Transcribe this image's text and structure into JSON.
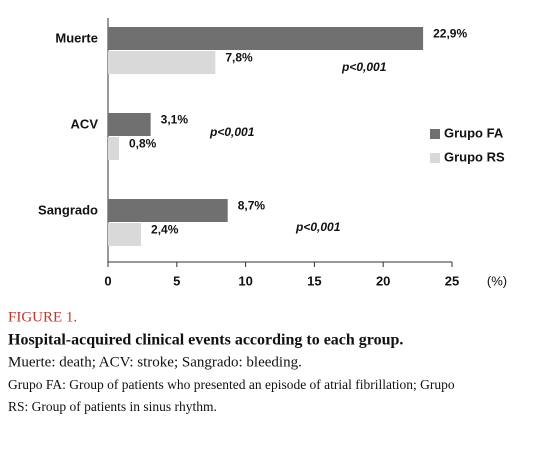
{
  "chart_data": {
    "type": "hbar",
    "categories": [
      "Muerte",
      "ACV",
      "Sangrado"
    ],
    "series": [
      {
        "name": "Grupo FA",
        "color": "#707070",
        "values": [
          22.9,
          3.1,
          8.7
        ],
        "value_labels": [
          "22,9%",
          "3,1%",
          "8,7%"
        ]
      },
      {
        "name": "Grupo RS",
        "color": "#d9d9d9",
        "values": [
          7.8,
          0.8,
          2.4
        ],
        "value_labels": [
          "7,8%",
          "0,8%",
          "2,4%"
        ]
      }
    ],
    "xlim": [
      0,
      25
    ],
    "xticks": [
      0,
      5,
      10,
      15,
      20,
      25
    ],
    "x_label": "(%)",
    "annotations": [
      "p<0,001",
      "p<0,001",
      "p<0,001"
    ]
  },
  "caption": {
    "label": "FIGURE 1.",
    "title": "Hospital-acquired clinical events according to each group.",
    "subtitle": "Muerte: death; ACV: stroke; Sangrado: bleeding.",
    "note": [
      "Grupo FA: Group of patients who presented an episode of atrial fibrillation; Grupo",
      "RS: Group of patients in sinus rhythm."
    ]
  }
}
